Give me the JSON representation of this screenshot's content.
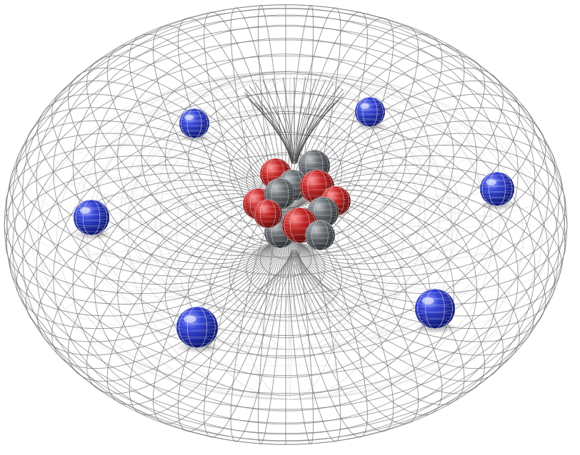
{
  "scene": {
    "subject": "atom-torus-model",
    "background_color": "#ffffff",
    "mesh_color": "#6f6f6f",
    "faint_mesh_color": "#c9c9c9",
    "electron_color": "#1f2fb0",
    "proton_color": "#b52020",
    "neutron_color": "#555a60",
    "electron_count": 6,
    "proton_count": 6,
    "neutron_count": 6
  }
}
